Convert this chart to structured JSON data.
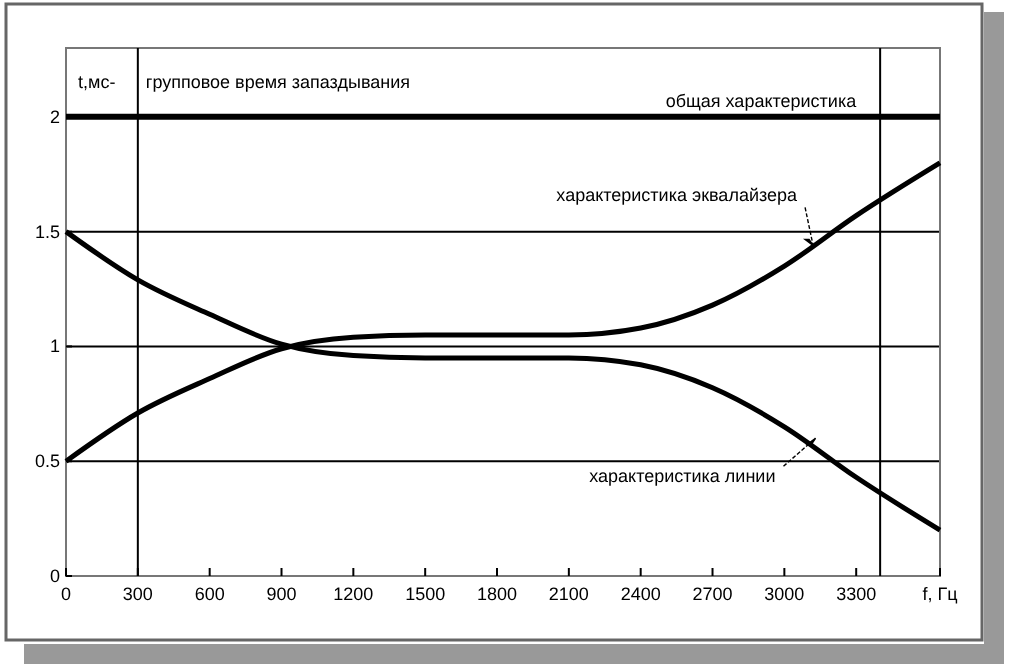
{
  "chart_data": {
    "type": "line",
    "title": "групповое время запаздывания",
    "ylabel": "t,мс-",
    "x": [
      0,
      300,
      600,
      900,
      1200,
      1500,
      1800,
      2100,
      2400,
      2700,
      3000,
      3300,
      3650
    ],
    "series": [
      {
        "color": "#000000",
        "values": [
          2,
          2,
          2,
          2,
          2,
          2,
          2,
          2,
          2,
          2,
          2,
          2,
          2
        ]
      },
      {
        "color": "#000000",
        "values": [
          0.5,
          0.71,
          0.86,
          0.99,
          1.04,
          1.05,
          1.05,
          1.05,
          1.08,
          1.18,
          1.35,
          1.57,
          1.8
        ]
      },
      {
        "color": "#000000",
        "values": [
          1.5,
          1.29,
          1.14,
          1.01,
          0.96,
          0.95,
          0.95,
          0.95,
          0.92,
          0.82,
          0.65,
          0.43,
          0.2
        ]
      }
    ],
    "xlim": [
      0,
      3650
    ],
    "xticks": [
      0,
      300,
      600,
      900,
      1200,
      1500,
      1800,
      2100,
      2400,
      2700,
      3000,
      3300,
      {
        "value": 3650,
        "label": "f, Гц"
      }
    ],
    "ylim": [
      0,
      2.3
    ],
    "yticks": [
      0,
      0.5,
      1,
      1.5,
      2
    ],
    "grid": "y",
    "marker": "none",
    "line_style": "solid",
    "ref_lines": [
      {
        "axis": "x",
        "value": 300,
        "label": null
      },
      {
        "axis": "x",
        "value": 3400,
        "label": null
      }
    ],
    "annotations": [
      {
        "text": "общая характеристика",
        "x": 3300,
        "y": 2
      },
      {
        "text": "характеристика эквалайзера",
        "x": 3120,
        "y": 1.44
      },
      {
        "text": "характеристика линии",
        "x": 3130,
        "y": 0.6
      }
    ]
  }
}
